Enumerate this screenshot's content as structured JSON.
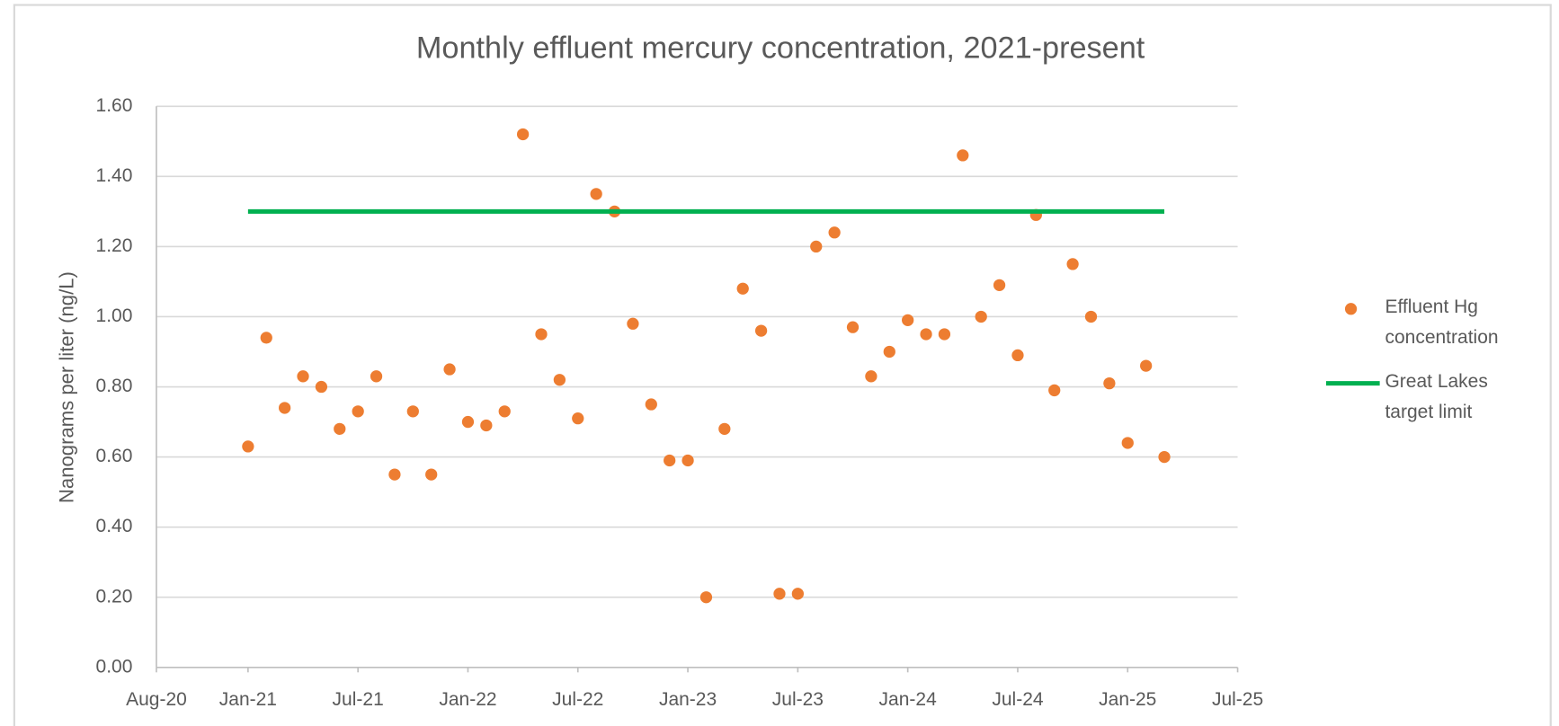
{
  "chart_data": {
    "type": "scatter",
    "title": "Monthly effluent mercury concentration, 2021-present",
    "ylabel": "Nanograms per liter (ng/L)",
    "xlim": [
      "2020-08",
      "2025-07"
    ],
    "xticks": [
      {
        "value": "2020-08",
        "label": "Aug-20"
      },
      {
        "value": "2021-01",
        "label": "Jan-21"
      },
      {
        "value": "2021-07",
        "label": "Jul-21"
      },
      {
        "value": "2022-01",
        "label": "Jan-22"
      },
      {
        "value": "2022-07",
        "label": "Jul-22"
      },
      {
        "value": "2023-01",
        "label": "Jan-23"
      },
      {
        "value": "2023-07",
        "label": "Jul-23"
      },
      {
        "value": "2024-01",
        "label": "Jan-24"
      },
      {
        "value": "2024-07",
        "label": "Jul-24"
      },
      {
        "value": "2025-01",
        "label": "Jan-25"
      },
      {
        "value": "2025-07",
        "label": "Jul-25"
      }
    ],
    "ylim": [
      0,
      1.6
    ],
    "yticks": [
      {
        "value": 0,
        "label": "0.00"
      },
      {
        "value": 0.2,
        "label": "0.20"
      },
      {
        "value": 0.4,
        "label": "0.40"
      },
      {
        "value": 0.6,
        "label": "0.60"
      },
      {
        "value": 0.8,
        "label": "0.80"
      },
      {
        "value": 1,
        "label": "1.00"
      },
      {
        "value": 1.2,
        "label": "1.20"
      },
      {
        "value": 1.4,
        "label": "1.40"
      },
      {
        "value": 1.6,
        "label": "1.60"
      }
    ],
    "grid": true,
    "legend": "right",
    "series": [
      {
        "name": "Effluent Hg concentration",
        "color": "#ed7d31",
        "mode": "markers",
        "x": [
          "2021-01",
          "2021-02",
          "2021-03",
          "2021-04",
          "2021-05",
          "2021-06",
          "2021-07",
          "2021-08",
          "2021-09",
          "2021-10",
          "2021-11",
          "2021-12",
          "2022-01",
          "2022-02",
          "2022-03",
          "2022-04",
          "2022-05",
          "2022-06",
          "2022-07",
          "2022-08",
          "2022-09",
          "2022-10",
          "2022-11",
          "2022-12",
          "2023-01",
          "2023-02",
          "2023-03",
          "2023-04",
          "2023-05",
          "2023-06",
          "2023-07",
          "2023-08",
          "2023-09",
          "2023-10",
          "2023-11",
          "2023-12",
          "2024-01",
          "2024-02",
          "2024-03",
          "2024-04",
          "2024-05",
          "2024-06",
          "2024-07",
          "2024-08",
          "2024-09",
          "2024-10",
          "2024-11",
          "2024-12",
          "2025-01",
          "2025-02",
          "2025-03"
        ],
        "values": [
          0.63,
          0.94,
          0.74,
          0.83,
          0.8,
          0.68,
          0.73,
          0.83,
          0.55,
          0.73,
          0.55,
          0.85,
          0.7,
          0.69,
          0.73,
          1.52,
          0.95,
          0.82,
          0.71,
          1.35,
          1.3,
          0.98,
          0.75,
          0.59,
          0.59,
          0.2,
          0.68,
          1.08,
          0.96,
          0.21,
          0.21,
          1.2,
          1.24,
          0.97,
          0.83,
          0.9,
          0.99,
          0.95,
          0.95,
          1.46,
          1.0,
          1.09,
          0.89,
          1.29,
          0.79,
          1.15,
          1.0,
          0.81,
          0.64,
          0.86,
          0.6
        ]
      },
      {
        "name": "Great Lakes target limit",
        "color": "#00b050",
        "mode": "line",
        "x": [
          "2021-01",
          "2025-03"
        ],
        "values": [
          1.3,
          1.3
        ]
      }
    ]
  }
}
